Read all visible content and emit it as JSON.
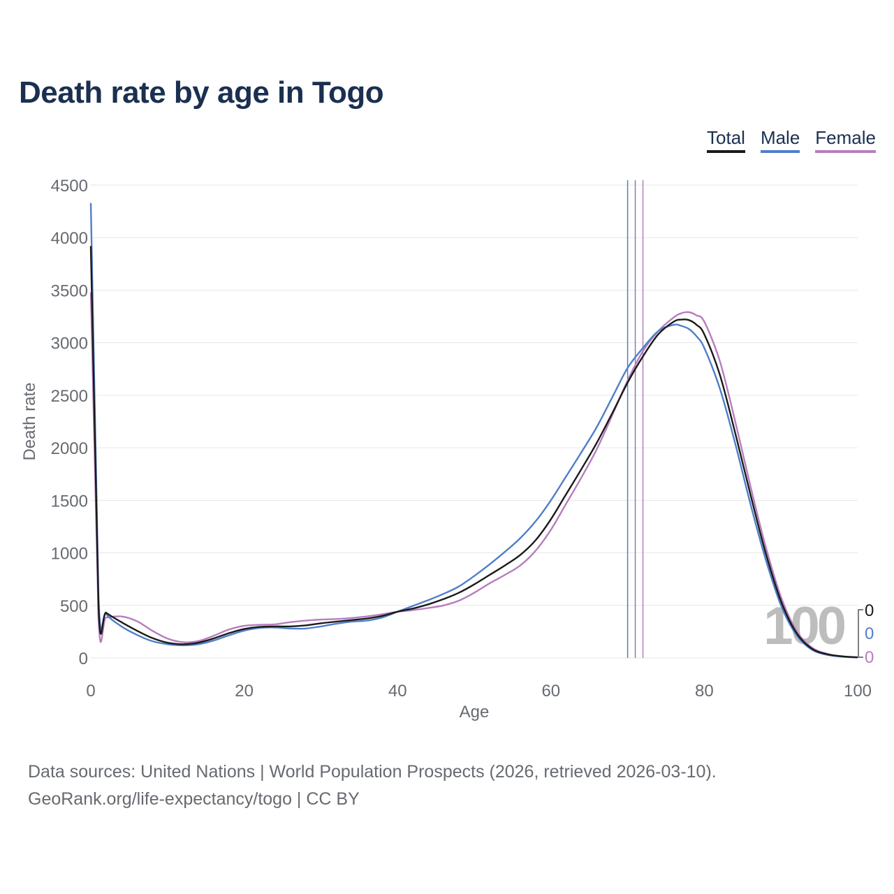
{
  "title": "Death rate by age in Togo",
  "legend": [
    {
      "label": "Total",
      "color": "#1a1a1a"
    },
    {
      "label": "Male",
      "color": "#4f7fc8"
    },
    {
      "label": "Female",
      "color": "#b67dbd"
    }
  ],
  "chart_data": {
    "type": "line",
    "title": "Death rate by age in Togo",
    "xlabel": "Age",
    "ylabel": "Death rate",
    "xlim": [
      0,
      100
    ],
    "ylim": [
      0,
      4500
    ],
    "xticks": [
      0,
      20,
      40,
      60,
      80,
      100
    ],
    "yticks": [
      0,
      500,
      1000,
      1500,
      2000,
      2500,
      3000,
      3500,
      4000,
      4500
    ],
    "grid": true,
    "x": [
      0,
      1,
      2,
      4,
      6,
      8,
      10,
      12,
      14,
      16,
      18,
      20,
      22,
      24,
      26,
      28,
      30,
      32,
      34,
      36,
      38,
      40,
      42,
      44,
      46,
      48,
      50,
      52,
      54,
      56,
      58,
      60,
      62,
      64,
      66,
      68,
      70,
      72,
      74,
      76,
      77,
      78,
      79,
      80,
      82,
      84,
      86,
      88,
      90,
      92,
      94,
      96,
      98,
      100
    ],
    "series": [
      {
        "name": "Total",
        "color": "#1a1a1a",
        "values": [
          3920,
          500,
          430,
          340,
          260,
          190,
          145,
          130,
          145,
          185,
          235,
          275,
          295,
          300,
          300,
          310,
          330,
          345,
          360,
          375,
          400,
          440,
          470,
          510,
          560,
          620,
          700,
          790,
          880,
          980,
          1120,
          1320,
          1560,
          1800,
          2050,
          2330,
          2620,
          2870,
          3080,
          3200,
          3220,
          3215,
          3170,
          3080,
          2700,
          2150,
          1560,
          1000,
          540,
          240,
          90,
          35,
          15,
          5
        ]
      },
      {
        "name": "Male",
        "color": "#4f7fc8",
        "values": [
          4330,
          600,
          420,
          300,
          220,
          160,
          130,
          120,
          130,
          165,
          215,
          260,
          285,
          290,
          280,
          280,
          300,
          325,
          345,
          355,
          385,
          440,
          495,
          550,
          610,
          680,
          780,
          890,
          1010,
          1140,
          1300,
          1500,
          1730,
          1960,
          2200,
          2480,
          2760,
          2950,
          3110,
          3170,
          3160,
          3130,
          3060,
          2950,
          2570,
          2050,
          1470,
          940,
          500,
          220,
          80,
          30,
          12,
          4
        ]
      },
      {
        "name": "Female",
        "color": "#b67dbd",
        "values": [
          3480,
          380,
          385,
          395,
          350,
          260,
          185,
          150,
          160,
          210,
          270,
          305,
          315,
          320,
          340,
          355,
          365,
          370,
          380,
          395,
          415,
          440,
          455,
          475,
          500,
          545,
          620,
          710,
          790,
          880,
          1020,
          1220,
          1470,
          1720,
          1990,
          2310,
          2640,
          2920,
          3110,
          3240,
          3280,
          3290,
          3260,
          3200,
          2830,
          2260,
          1640,
          1060,
          580,
          260,
          100,
          40,
          15,
          5
        ]
      }
    ],
    "reference_lines": [
      {
        "series": "Male",
        "x": 70.0,
        "color": "#4f7fc8"
      },
      {
        "series": "Total",
        "x": 71.0,
        "color": "#8a7fb0"
      },
      {
        "series": "Female",
        "x": 72.0,
        "color": "#b67dbd"
      }
    ],
    "end_labels": [
      {
        "series": "Total",
        "text": "0",
        "color": "#1a1a1a"
      },
      {
        "series": "Male",
        "text": "0",
        "color": "#4f7fc8"
      },
      {
        "series": "Female",
        "text": "0",
        "color": "#b67dbd"
      }
    ],
    "watermark": "100"
  },
  "footer": {
    "source": "Data sources: United Nations | World Population Prospects (2026, retrieved 2026-03-10).",
    "link": "GeoRank.org/life-expectancy/togo | CC BY"
  }
}
